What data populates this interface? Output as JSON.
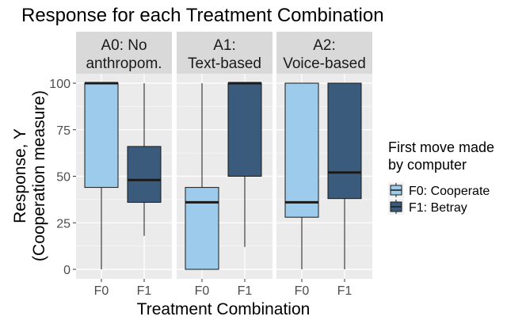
{
  "chart_data": {
    "type": "boxplot",
    "title": "Response for each Treatment Combination",
    "xlabel": "Treatment Combination",
    "ylabel_lines": [
      "Response, Y",
      "(Cooperation measure)"
    ],
    "ylim": [
      0,
      100
    ],
    "yticks": [
      0,
      25,
      50,
      75,
      100
    ],
    "categories": [
      "F0",
      "F1"
    ],
    "legend": {
      "title_lines": [
        "First move made",
        "by computer"
      ],
      "placement": "right",
      "entries": [
        {
          "key": "F0",
          "label": "F0: Cooperate",
          "color": "#9ccbeb"
        },
        {
          "key": "F1",
          "label": "F1: Betray",
          "color": "#3b5b7c"
        }
      ]
    },
    "colors": {
      "panel_bg": "#ebebeb",
      "grid": "#ffffff",
      "strip_bg": "#d9d9d9",
      "outline": "#1a1a1a"
    },
    "facets": [
      {
        "strip_lines": [
          "A0: No",
          "anthropom."
        ],
        "boxes": [
          {
            "category": "F0",
            "min": 0,
            "q1": 44,
            "median": 100,
            "q3": 100,
            "max": 100
          },
          {
            "category": "F1",
            "min": 18,
            "q1": 36,
            "median": 48,
            "q3": 66,
            "max": 100
          }
        ]
      },
      {
        "strip_lines": [
          "A1:",
          "Text-based"
        ],
        "boxes": [
          {
            "category": "F0",
            "min": 0,
            "q1": 0,
            "median": 36,
            "q3": 44,
            "max": 100
          },
          {
            "category": "F1",
            "min": 12,
            "q1": 50,
            "median": 100,
            "q3": 100,
            "max": 100
          }
        ]
      },
      {
        "strip_lines": [
          "A2:",
          "Voice-based"
        ],
        "boxes": [
          {
            "category": "F0",
            "min": 0,
            "q1": 28,
            "median": 36,
            "q3": 100,
            "max": 100
          },
          {
            "category": "F1",
            "min": 0,
            "q1": 38,
            "median": 52,
            "q3": 100,
            "max": 100
          }
        ]
      }
    ]
  }
}
